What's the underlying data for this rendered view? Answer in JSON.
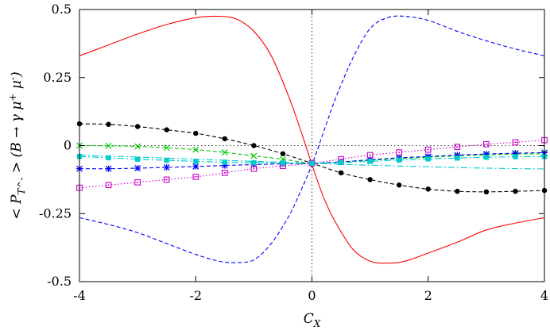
{
  "chart_data": {
    "type": "line",
    "xlabel": "C_X",
    "ylabel": "< P_T^- > (B → γ μ^+ μ^-)",
    "xlim": [
      -4,
      4
    ],
    "ylim": [
      -0.5,
      0.5
    ],
    "x_ticks": [
      {
        "value": -4,
        "label": "-4"
      },
      {
        "value": -2,
        "label": "-2"
      },
      {
        "value": 0,
        "label": "0"
      },
      {
        "value": 2,
        "label": "2"
      },
      {
        "value": 4,
        "label": "4"
      }
    ],
    "y_ticks": [
      {
        "value": 0.5,
        "label": "0.5"
      },
      {
        "value": 0.25,
        "label": "0.25"
      },
      {
        "value": 0,
        "label": "0"
      },
      {
        "value": -0.25,
        "label": "-0.25"
      },
      {
        "value": -0.5,
        "label": "-0.5"
      }
    ],
    "reference_lines": {
      "x_zero": true,
      "y_zero": true
    },
    "grid": false,
    "legend": "none",
    "series": [
      {
        "color": "#ff0000",
        "style": "solid",
        "marker": "none",
        "x": [
          -4,
          -3.5,
          -3,
          -2.5,
          -2,
          -1.6,
          -1.3,
          -1,
          -0.7,
          -0.4,
          -0.2,
          0,
          0.2,
          0.4,
          0.7,
          1,
          1.3,
          1.6,
          2,
          2.5,
          3,
          3.5,
          4
        ],
        "y": [
          0.33,
          0.37,
          0.41,
          0.445,
          0.47,
          0.475,
          0.465,
          0.42,
          0.33,
          0.18,
          0.06,
          -0.07,
          -0.19,
          -0.28,
          -0.38,
          -0.425,
          -0.432,
          -0.425,
          -0.395,
          -0.355,
          -0.31,
          -0.285,
          -0.265
        ]
      },
      {
        "color": "#0000ff",
        "style": "dashed",
        "marker": "none",
        "x": [
          -4,
          -3.5,
          -3,
          -2.5,
          -2,
          -1.6,
          -1.3,
          -1,
          -0.7,
          -0.4,
          -0.2,
          0,
          0.2,
          0.4,
          0.7,
          1,
          1.3,
          1.6,
          2,
          2.5,
          3,
          3.5,
          4
        ],
        "y": [
          -0.265,
          -0.29,
          -0.32,
          -0.36,
          -0.4,
          -0.425,
          -0.43,
          -0.42,
          -0.36,
          -0.26,
          -0.17,
          -0.07,
          0.05,
          0.17,
          0.32,
          0.43,
          0.47,
          0.475,
          0.46,
          0.42,
          0.385,
          0.355,
          0.33
        ]
      },
      {
        "color": "#000000",
        "style": "dashed",
        "marker": "filled-circle",
        "x": [
          -4,
          -3.5,
          -3,
          -2.5,
          -2,
          -1.5,
          -1,
          -0.5,
          0,
          0.5,
          1,
          1.5,
          2,
          2.5,
          3,
          3.5,
          4
        ],
        "y": [
          0.08,
          0.078,
          0.07,
          0.058,
          0.045,
          0.025,
          0.0,
          -0.03,
          -0.065,
          -0.1,
          -0.125,
          -0.145,
          -0.16,
          -0.168,
          -0.17,
          -0.168,
          -0.165
        ]
      },
      {
        "color": "#00cc00",
        "style": "dashed",
        "marker": "x",
        "x": [
          -4,
          -3.5,
          -3,
          -2.5,
          -2,
          -1.5,
          -1,
          -0.5,
          0,
          0.5,
          1,
          1.5,
          2,
          2.5,
          3,
          3.5,
          4
        ],
        "y": [
          0.0,
          -0.001,
          -0.003,
          -0.008,
          -0.015,
          -0.025,
          -0.038,
          -0.05,
          -0.065,
          -0.06,
          -0.054,
          -0.048,
          -0.043,
          -0.038,
          -0.034,
          -0.031,
          -0.03
        ]
      },
      {
        "color": "#0000ff",
        "style": "dashed",
        "marker": "asterisk",
        "x": [
          -4,
          -3.5,
          -3,
          -2.5,
          -2,
          -1.5,
          -1,
          -0.5,
          0,
          0.5,
          1,
          1.5,
          2,
          2.5,
          3,
          3.5,
          4
        ],
        "y": [
          -0.085,
          -0.085,
          -0.083,
          -0.08,
          -0.077,
          -0.073,
          -0.07,
          -0.067,
          -0.065,
          -0.06,
          -0.052,
          -0.045,
          -0.04,
          -0.035,
          -0.031,
          -0.028,
          -0.026
        ]
      },
      {
        "color": "#cc00cc",
        "style": "dotted",
        "marker": "open-square",
        "x": [
          -4,
          -3.5,
          -3,
          -2.5,
          -2,
          -1.5,
          -1,
          -0.5,
          0,
          0.5,
          1,
          1.5,
          2,
          2.5,
          3,
          3.5,
          4
        ],
        "y": [
          -0.155,
          -0.145,
          -0.135,
          -0.125,
          -0.115,
          -0.1,
          -0.085,
          -0.075,
          -0.065,
          -0.05,
          -0.035,
          -0.025,
          -0.015,
          -0.005,
          0.005,
          0.012,
          0.02
        ]
      },
      {
        "color": "#00cccc",
        "style": "dash-dot",
        "marker": "filled-square",
        "x": [
          -4,
          -3.5,
          -3,
          -2.5,
          -2,
          -1.5,
          -1,
          -0.5,
          0,
          0.5,
          1,
          1.5,
          2,
          2.5,
          3,
          3.5,
          4
        ],
        "y": [
          -0.04,
          -0.045,
          -0.05,
          -0.054,
          -0.058,
          -0.061,
          -0.063,
          -0.064,
          -0.065,
          -0.062,
          -0.058,
          -0.053,
          -0.049,
          -0.046,
          -0.043,
          -0.041,
          -0.04
        ]
      },
      {
        "color": "#00cccc",
        "style": "dash-dot",
        "marker": "none",
        "x": [
          -4,
          -3,
          -2,
          -1,
          0,
          1,
          2,
          3,
          4
        ],
        "y": [
          -0.035,
          -0.042,
          -0.05,
          -0.058,
          -0.065,
          -0.072,
          -0.078,
          -0.083,
          -0.086
        ]
      }
    ]
  }
}
